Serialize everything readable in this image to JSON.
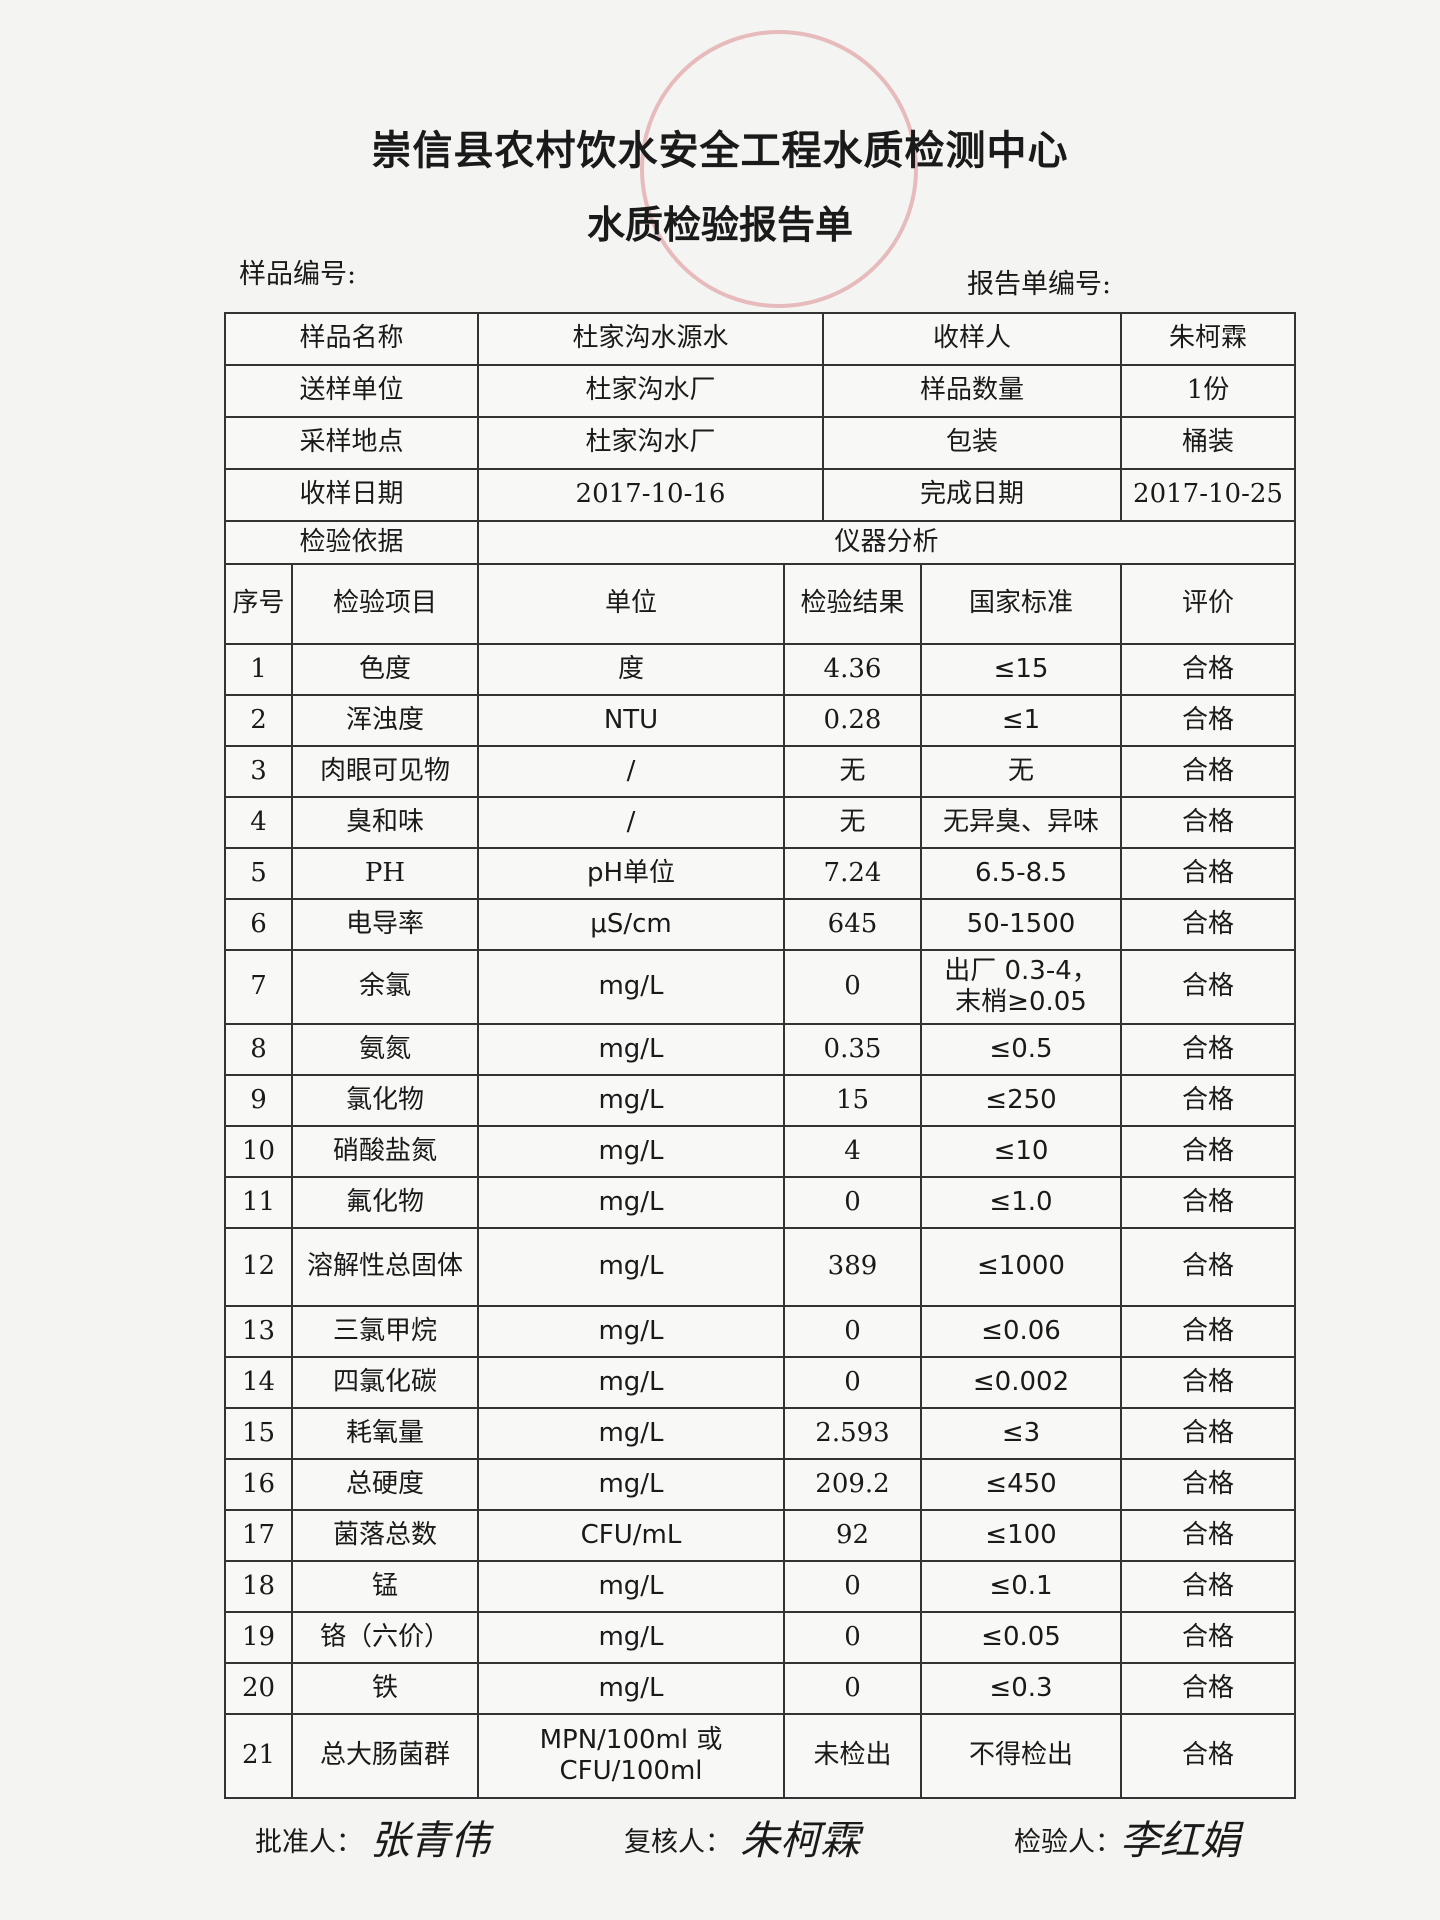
{
  "header": {
    "title": "崇信县农村饮水安全工程水质检测中心",
    "subtitle": "水质检验报告单",
    "sample_no_label": "样品编号:",
    "report_no_label": "报告单编号:"
  },
  "info": {
    "rows": [
      [
        "样品名称",
        "杜家沟水源水",
        "收样人",
        "朱柯霖"
      ],
      [
        "送样单位",
        "杜家沟水厂",
        "样品数量",
        "1份"
      ],
      [
        "采样地点",
        "杜家沟水厂",
        "包装",
        "桶装"
      ],
      [
        "收样日期",
        "2017-10-16",
        "完成日期",
        "2017-10-25"
      ]
    ],
    "basis": [
      "检验依据",
      "仪器分析"
    ]
  },
  "table": {
    "columns": [
      "序号",
      "检验项目",
      "单位",
      "检验结果",
      "国家标准",
      "评价"
    ],
    "rows": [
      [
        "1",
        "色度",
        "度",
        "4.36",
        "≤15",
        "合格"
      ],
      [
        "2",
        "浑浊度",
        "NTU",
        "0.28",
        "≤1",
        "合格"
      ],
      [
        "3",
        "肉眼可见物",
        "/",
        "无",
        "无",
        "合格"
      ],
      [
        "4",
        "臭和味",
        "/",
        "无",
        "无异臭、异味",
        "合格"
      ],
      [
        "5",
        "PH",
        "pH单位",
        "7.24",
        "6.5-8.5",
        "合格"
      ],
      [
        "6",
        "电导率",
        "μS/cm",
        "645",
        "50-1500",
        "合格"
      ],
      [
        "7",
        "余氯",
        "mg/L",
        "0",
        "出厂 0.3-4，\n末梢≥0.05",
        "合格"
      ],
      [
        "8",
        "氨氮",
        "mg/L",
        "0.35",
        "≤0.5",
        "合格"
      ],
      [
        "9",
        "氯化物",
        "mg/L",
        "15",
        "≤250",
        "合格"
      ],
      [
        "10",
        "硝酸盐氮",
        "mg/L",
        "4",
        "≤10",
        "合格"
      ],
      [
        "11",
        "氟化物",
        "mg/L",
        "0",
        "≤1.0",
        "合格"
      ],
      [
        "12",
        "溶解性总固体",
        "mg/L",
        "389",
        "≤1000",
        "合格"
      ],
      [
        "13",
        "三氯甲烷",
        "mg/L",
        "0",
        "≤0.06",
        "合格"
      ],
      [
        "14",
        "四氯化碳",
        "mg/L",
        "0",
        "≤0.002",
        "合格"
      ],
      [
        "15",
        "耗氧量",
        "mg/L",
        "2.593",
        "≤3",
        "合格"
      ],
      [
        "16",
        "总硬度",
        "mg/L",
        "209.2",
        "≤450",
        "合格"
      ],
      [
        "17",
        "菌落总数",
        "CFU/mL",
        "92",
        "≤100",
        "合格"
      ],
      [
        "18",
        "锰",
        "mg/L",
        "0",
        "≤0.1",
        "合格"
      ],
      [
        "19",
        "铬（六价）",
        "mg/L",
        "0",
        "≤0.05",
        "合格"
      ],
      [
        "20",
        "铁",
        "mg/L",
        "0",
        "≤0.3",
        "合格"
      ],
      [
        "21",
        "总大肠菌群",
        "MPN/100ml 或\nCFU/100ml",
        "未检出",
        "不得检出",
        "合格"
      ]
    ]
  },
  "footer": {
    "approver_label": "批准人：",
    "approver_signature": "张青伟",
    "reviewer_label": "复核人：",
    "reviewer_signature": "朱柯霖",
    "inspector_label": "检验人：",
    "inspector_signature": "李红娟"
  }
}
